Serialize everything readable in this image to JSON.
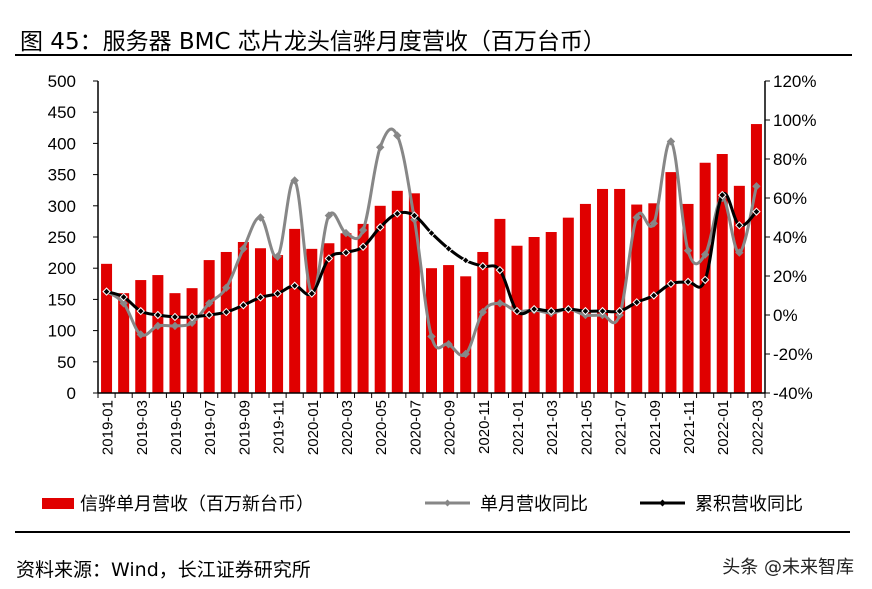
{
  "title": "图 45：服务器 BMC 芯片龙头信骅月度营收（百万台币）",
  "source": "资料来源：Wind，长江证券研究所",
  "watermark": "头条 @未来智库",
  "colors": {
    "bar": "#E00000",
    "monthly_yoy": "#878787",
    "cumulative_yoy": "#000000"
  },
  "chart_data": {
    "type": "bar+line",
    "x": [
      "2019-01",
      "2019-02",
      "2019-03",
      "2019-04",
      "2019-05",
      "2019-06",
      "2019-07",
      "2019-08",
      "2019-09",
      "2019-10",
      "2019-11",
      "2019-12",
      "2020-01",
      "2020-02",
      "2020-03",
      "2020-04",
      "2020-05",
      "2020-06",
      "2020-07",
      "2020-08",
      "2020-09",
      "2020-10",
      "2020-11",
      "2020-12",
      "2021-01",
      "2021-02",
      "2021-03",
      "2021-04",
      "2021-05",
      "2021-06",
      "2021-07",
      "2021-08",
      "2021-09",
      "2021-10",
      "2021-11",
      "2021-12",
      "2022-01",
      "2022-02",
      "2022-03"
    ],
    "x_tick_labels": [
      "2019-01",
      "2019-03",
      "2019-05",
      "2019-07",
      "2019-09",
      "2019-11",
      "2020-01",
      "2020-03",
      "2020-05",
      "2020-07",
      "2020-09",
      "2020-11",
      "2021-01",
      "2021-03",
      "2021-05",
      "2021-07",
      "2021-09",
      "2021-11",
      "2022-01",
      "2022-03"
    ],
    "y_left": {
      "lim": [
        0,
        500
      ],
      "ticks": [
        "0",
        "50",
        "100",
        "150",
        "200",
        "250",
        "300",
        "350",
        "400",
        "450",
        "500"
      ]
    },
    "y_right": {
      "lim": [
        -40,
        120
      ],
      "ticks": [
        "-40%",
        "-20%",
        "0%",
        "20%",
        "40%",
        "60%",
        "80%",
        "100%",
        "120%"
      ]
    },
    "grid": false,
    "legend_position": "bottom",
    "series": [
      {
        "name": "信骅单月营收（百万新台币）",
        "type": "bar",
        "axis": "left",
        "values": [
          207,
          160,
          181,
          189,
          160,
          168,
          213,
          226,
          242,
          232,
          221,
          263,
          231,
          240,
          256,
          271,
          300,
          324,
          320,
          200,
          205,
          187,
          226,
          279,
          236,
          250,
          258,
          281,
          303,
          327,
          327,
          302,
          304,
          354,
          303,
          369,
          383,
          332,
          431
        ]
      },
      {
        "name": "单月营收同比",
        "type": "line",
        "axis": "right",
        "values": [
          12,
          6,
          -10,
          -5.6,
          -5.6,
          -4,
          6,
          14,
          34,
          50,
          30,
          69,
          11,
          51,
          42,
          43.5,
          86,
          92,
          49,
          -11,
          -15,
          -20,
          1.5,
          6,
          2,
          2.5,
          1,
          3,
          0,
          0,
          0,
          50,
          47,
          89,
          33,
          31,
          60,
          32,
          66
        ]
      },
      {
        "name": "累积营收同比",
        "type": "line",
        "axis": "right",
        "values": [
          12,
          9.2,
          2,
          0,
          -1,
          -1,
          0,
          1.5,
          5,
          9,
          11,
          15,
          11,
          29,
          32,
          35,
          45,
          52,
          51,
          42,
          34,
          28,
          25,
          23,
          2,
          3,
          2,
          3,
          2,
          2,
          2,
          6.5,
          10,
          16,
          17,
          18,
          61.5,
          46,
          53
        ]
      }
    ]
  }
}
